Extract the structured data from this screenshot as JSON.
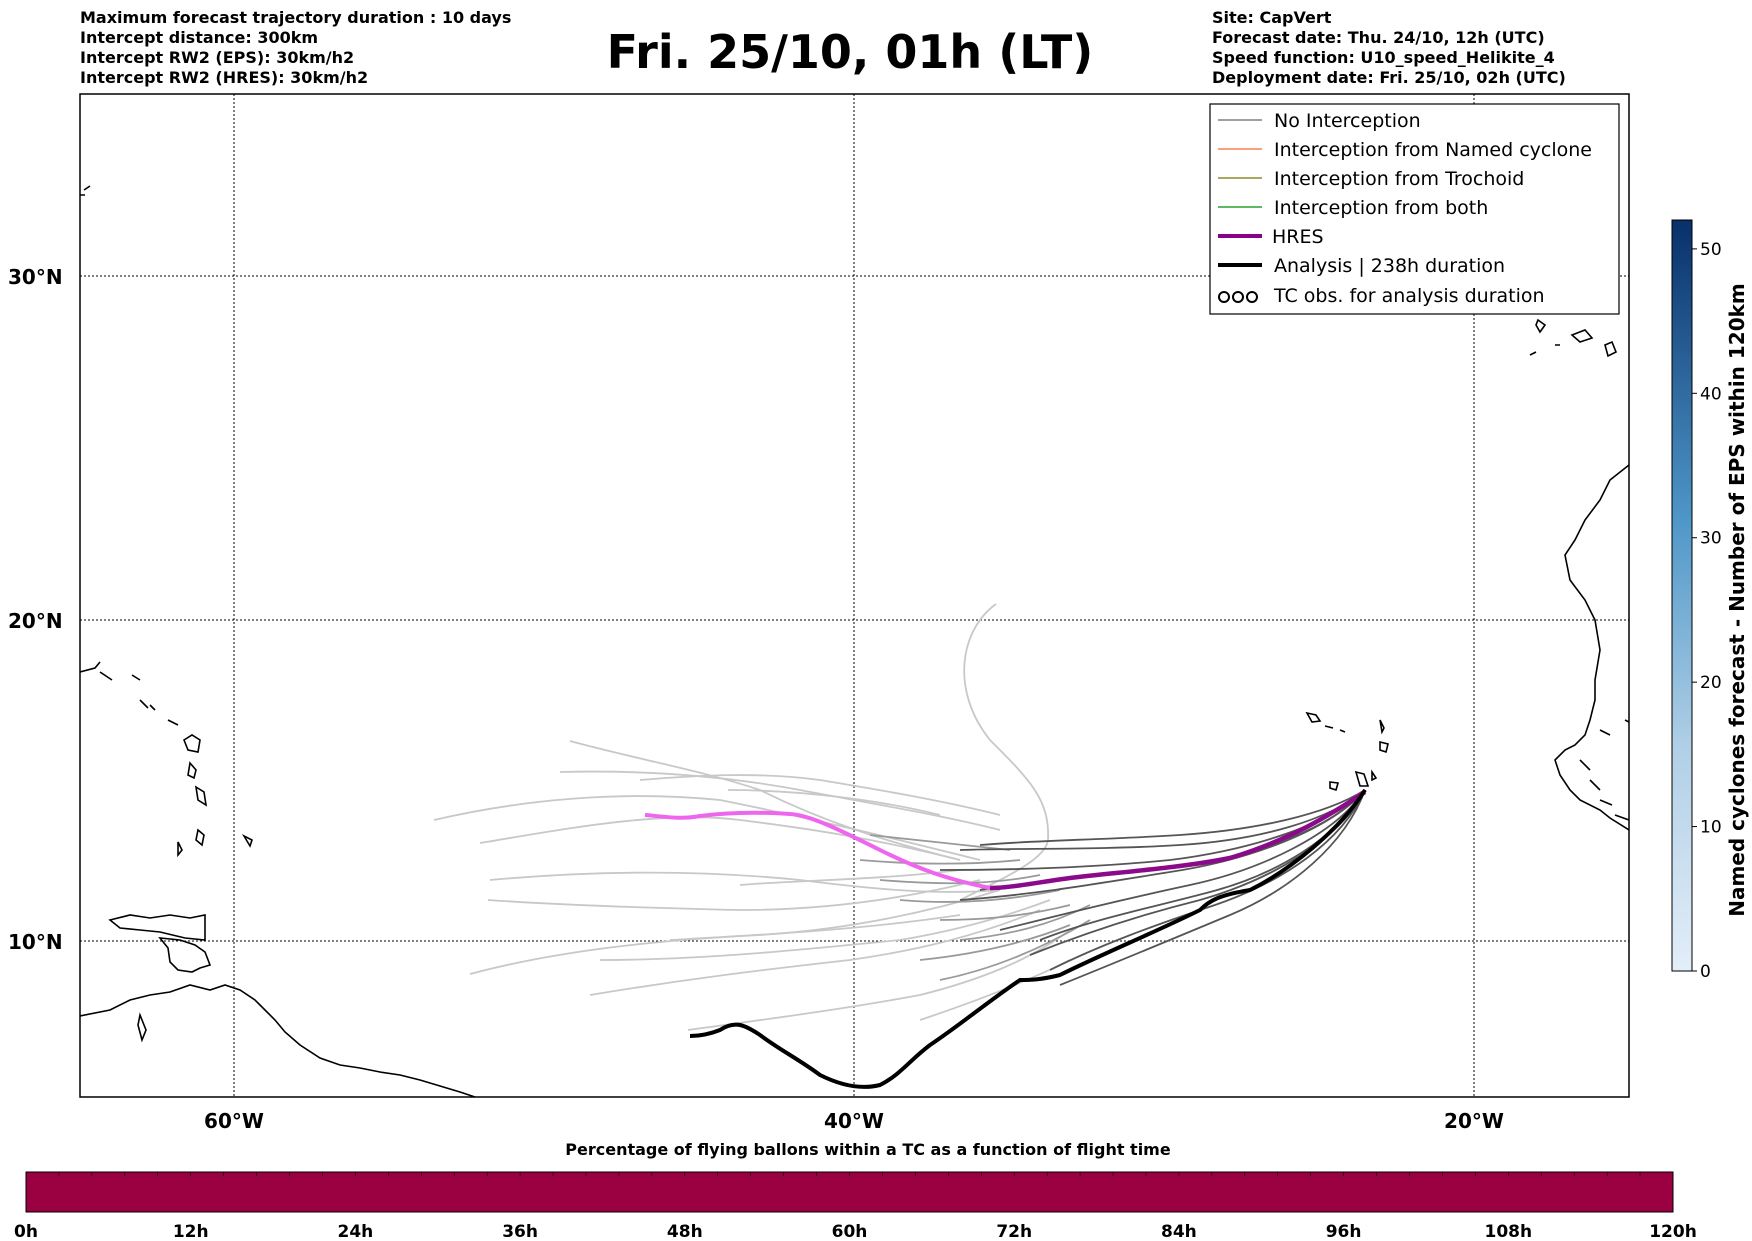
{
  "header_left": [
    "Maximum forecast trajectory duration : 10 days",
    "Intercept distance: 300km",
    "Intercept RW2 (EPS):  30km/h2",
    "Intercept RW2 (HRES): 30km/h2"
  ],
  "title": "Fri. 25/10, 01h (LT)",
  "header_right": [
    "Site: CapVert",
    "Forecast date: Thu. 24/10, 12h (UTC)",
    "Speed function: U10_speed_Helikite_4",
    "Deployment date: Fri. 25/10, 02h (UTC)"
  ],
  "map": {
    "lat_labels": [
      "30°N",
      "20°N",
      "10°N"
    ],
    "lon_labels": [
      "60°W",
      "40°W",
      "20°W"
    ],
    "colors": {
      "eps": "#9a9a9a",
      "eps_light": "#c8c8c8",
      "eps_dark": "#555555",
      "hres_dark": "#8b0a8b",
      "hres_light": "#ee66ee",
      "analysis": "#000000"
    }
  },
  "legend": {
    "items": [
      {
        "label": "No Interception",
        "color": "#808080",
        "style": "line"
      },
      {
        "label": "Interception from Named cyclone",
        "color": "#ff7f50",
        "style": "line"
      },
      {
        "label": "Interception from Trochoid",
        "color": "#8b8b2a",
        "style": "line"
      },
      {
        "label": "Interception from both",
        "color": "#2ca02c",
        "style": "line"
      },
      {
        "label": "HRES",
        "color": "#8b008b",
        "style": "thick"
      },
      {
        "label": "Analysis | 238h duration",
        "color": "#000000",
        "style": "thick"
      },
      {
        "label": "TC obs. for analysis duration",
        "color": "#000000",
        "style": "symbol"
      }
    ]
  },
  "colorbar_right": {
    "label": "Named cyclones forecast - Number of EPS within 120km",
    "ticks": [
      "0",
      "10",
      "20",
      "30",
      "40",
      "50"
    ],
    "max": 52,
    "color_low": "#e3eef9",
    "color_high": "#08306b"
  },
  "colorbar_bottom": {
    "title": "Percentage of flying ballons within a TC as a function of flight time",
    "ticks": [
      "0h",
      "12h",
      "24h",
      "36h",
      "48h",
      "60h",
      "72h",
      "84h",
      "96h",
      "108h",
      "120h"
    ],
    "color": "#9b0040"
  }
}
